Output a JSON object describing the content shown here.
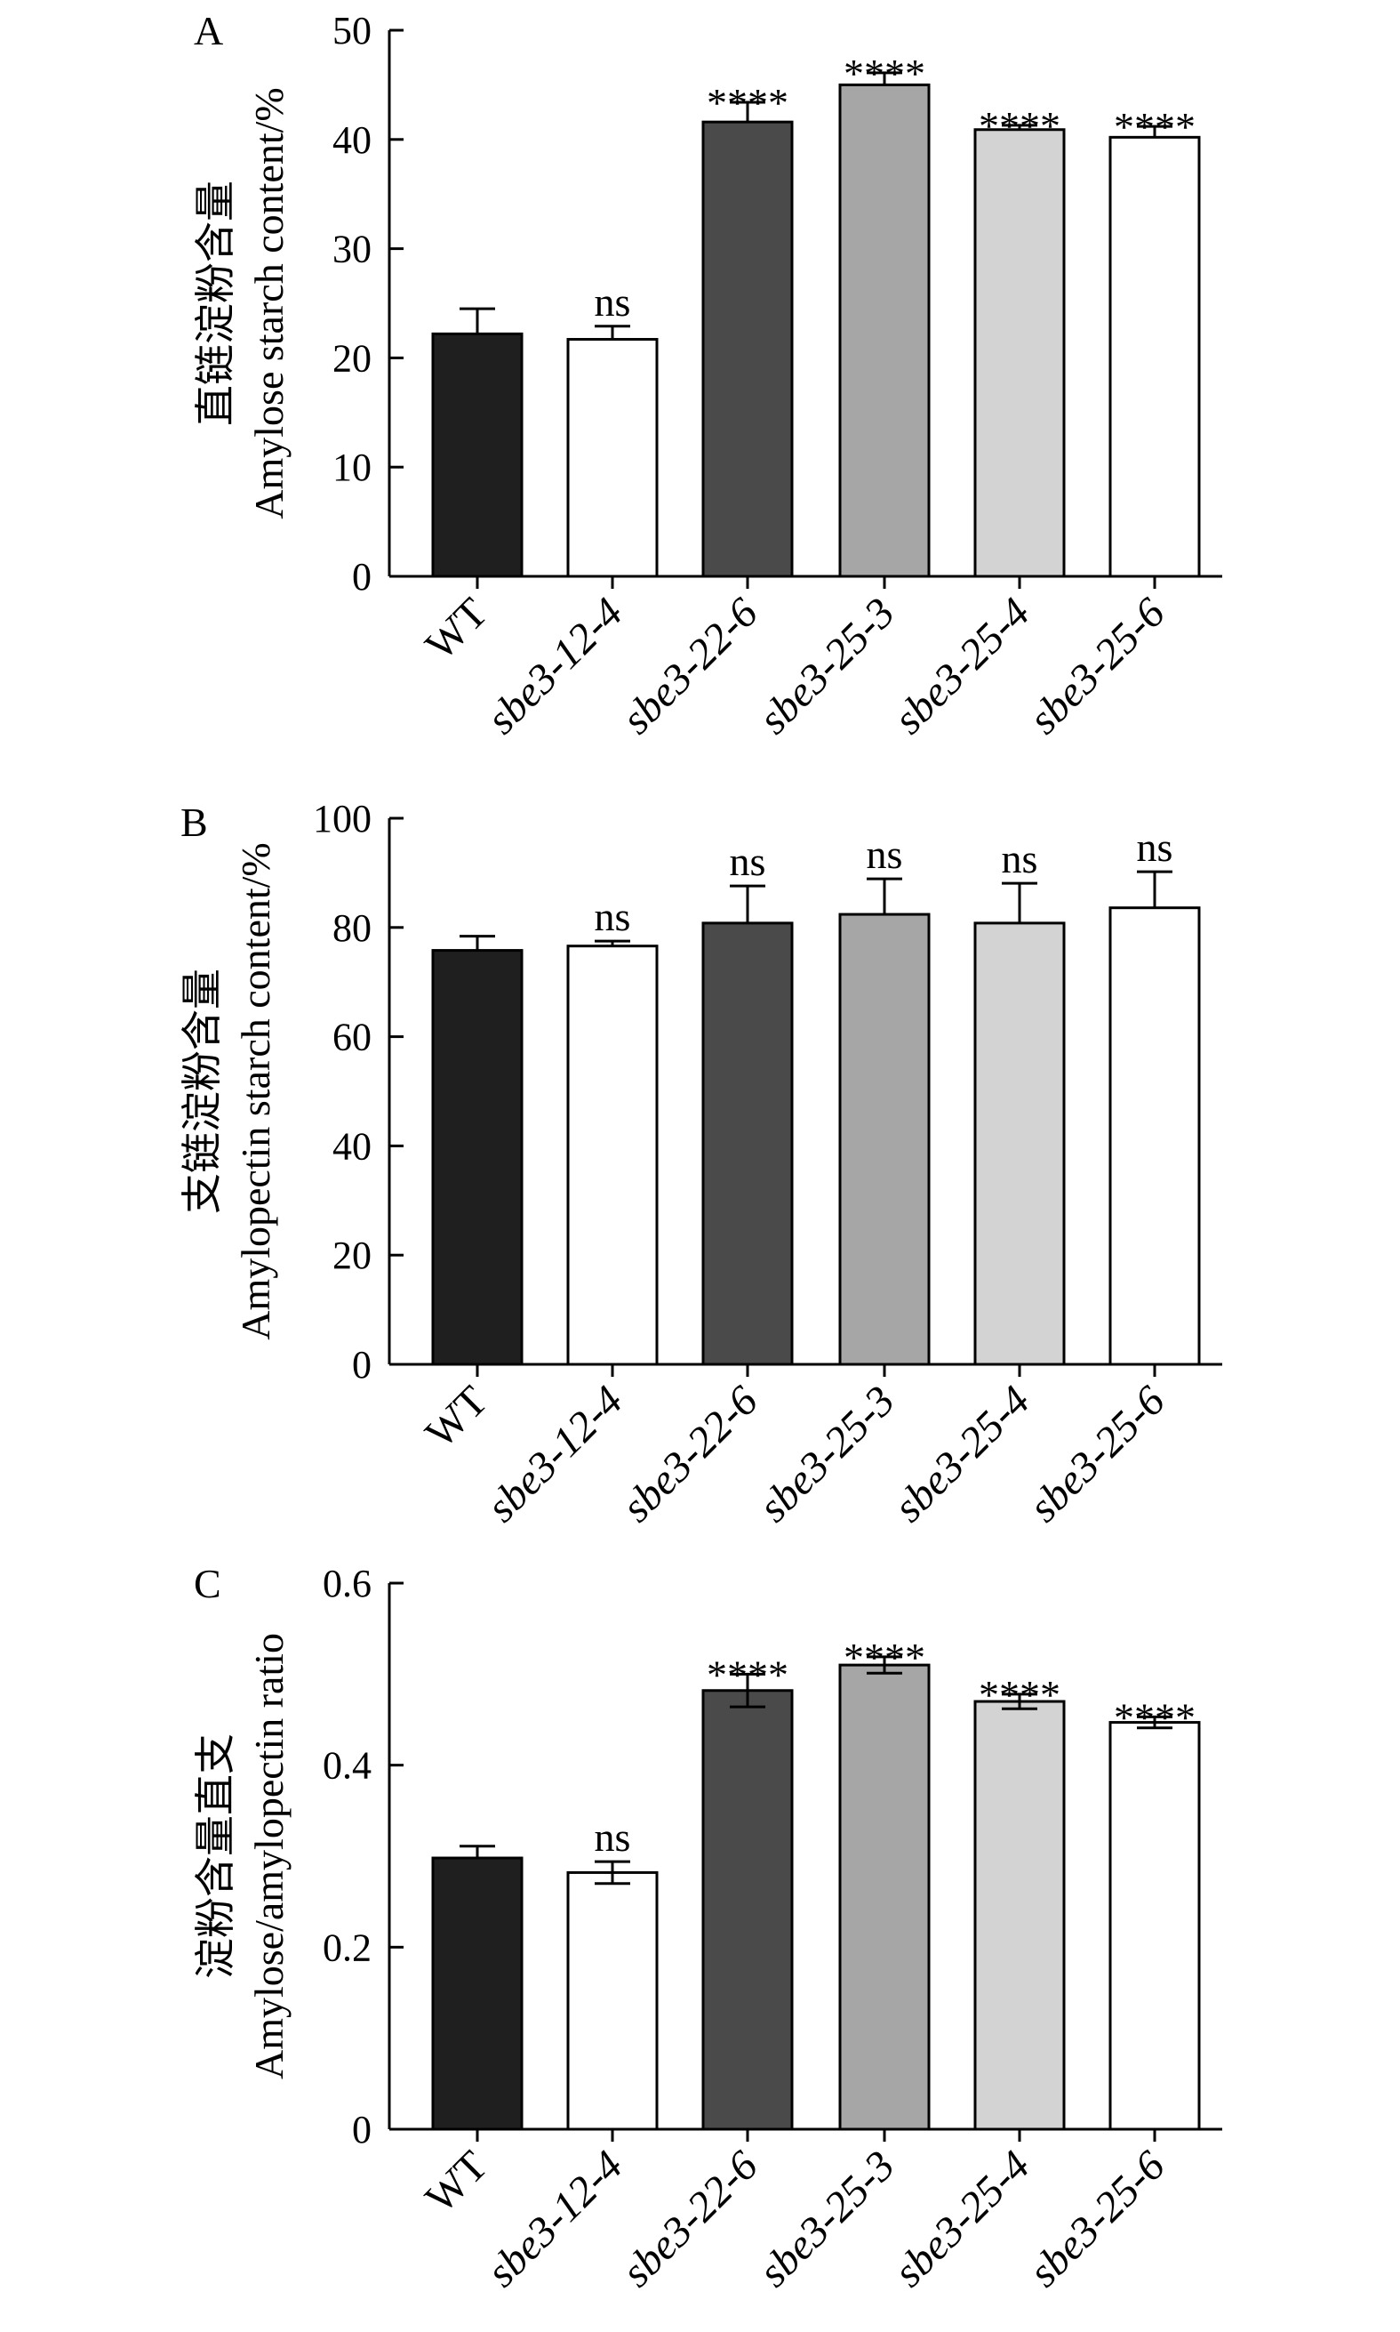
{
  "chart_data": [
    {
      "type": "bar",
      "panel": "A",
      "ylabel_cn": "直链淀粉含量",
      "ylabel": "Amylose starch content/%",
      "ylim": [
        0,
        50
      ],
      "yticks": [
        "0",
        "10",
        "20",
        "30",
        "40",
        "50"
      ],
      "categories": [
        "WT",
        "sbe3-12-4",
        "sbe3-22-6",
        "sbe3-25-3",
        "sbe3-25-4",
        "sbe3-25-6"
      ],
      "values": [
        22.2,
        21.7,
        41.6,
        45.0,
        40.9,
        40.2
      ],
      "errors": [
        2.3,
        1.2,
        1.8,
        1.1,
        0.4,
        1.0
      ],
      "significance": [
        "",
        "ns",
        "****",
        "****",
        "****",
        "****"
      ],
      "colors": [
        "#1f1f1f",
        "#ffffff",
        "#4a4a4a",
        "#a6a6a6",
        "#d3d3d3",
        "#ffffff"
      ]
    },
    {
      "type": "bar",
      "panel": "B",
      "ylabel_cn": "支链淀粉含量",
      "ylabel": "Amylopectin starch content/%",
      "ylim": [
        0,
        100
      ],
      "yticks": [
        "0",
        "20",
        "40",
        "60",
        "80",
        "100"
      ],
      "categories": [
        "WT",
        "sbe3-12-4",
        "sbe3-22-6",
        "sbe3-25-3",
        "sbe3-25-4",
        "sbe3-25-6"
      ],
      "values": [
        75.8,
        76.6,
        80.8,
        82.4,
        80.8,
        83.6
      ],
      "errors": [
        2.6,
        0.9,
        6.8,
        6.5,
        7.3,
        6.6
      ],
      "significance": [
        "",
        "ns",
        "ns",
        "ns",
        "ns",
        "ns"
      ],
      "colors": [
        "#1f1f1f",
        "#ffffff",
        "#4a4a4a",
        "#a6a6a6",
        "#d3d3d3",
        "#ffffff"
      ]
    },
    {
      "type": "bar",
      "panel": "C",
      "ylabel_cn": "淀粉含量直支",
      "ylabel": "Amylose/amylopectin ratio",
      "ylim": [
        0,
        0.6
      ],
      "yticks": [
        "0",
        "0.2",
        "0.4",
        "0.6"
      ],
      "categories": [
        "WT",
        "sbe3-12-4",
        "sbe3-22-6",
        "sbe3-25-3",
        "sbe3-25-4",
        "sbe3-25-6"
      ],
      "values": [
        0.298,
        0.282,
        0.482,
        0.51,
        0.47,
        0.447
      ],
      "errors": [
        0.013,
        0.012,
        0.018,
        0.009,
        0.008,
        0.006
      ],
      "error_both": [
        false,
        true,
        true,
        true,
        true,
        true
      ],
      "significance": [
        "",
        "ns",
        "****",
        "****",
        "****",
        "****"
      ],
      "colors": [
        "#1f1f1f",
        "#ffffff",
        "#4a4a4a",
        "#a6a6a6",
        "#d3d3d3",
        "#ffffff"
      ]
    }
  ]
}
